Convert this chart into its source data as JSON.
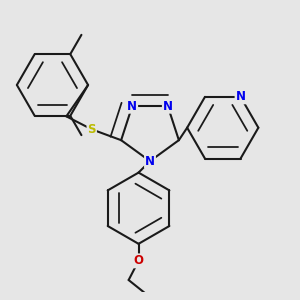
{
  "background_color": "#e6e6e6",
  "bond_color": "#1a1a1a",
  "bond_width": 1.5,
  "atom_colors": {
    "N": "#0000ee",
    "S": "#bbbb00",
    "O": "#cc0000",
    "C": "#1a1a1a"
  },
  "font_size_atom": 8.5
}
